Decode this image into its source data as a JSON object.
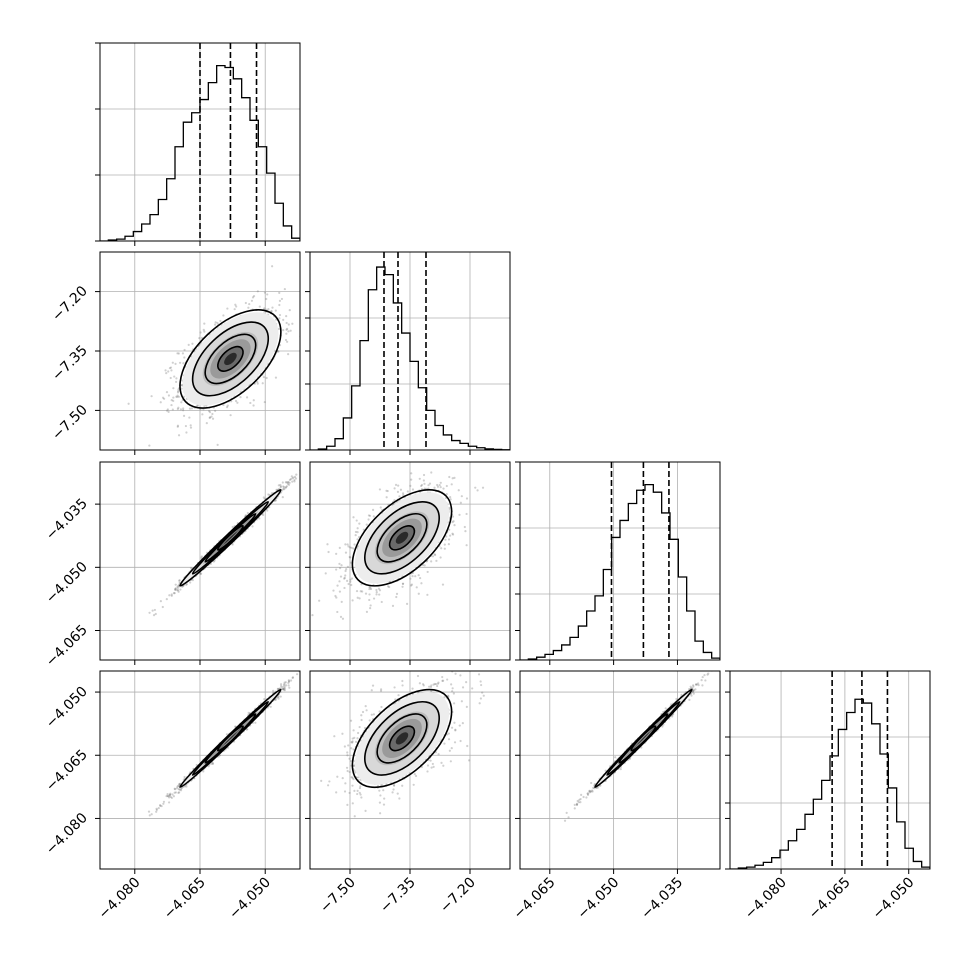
{
  "chart_data": {
    "type": "corner",
    "description_free": true,
    "parameters": [
      {
        "range": [
          -4.088,
          -4.042
        ],
        "ticks": [
          -4.08,
          -4.065,
          -4.05
        ],
        "tick_labels": [
          "−4.080",
          "−4.065",
          "−4.050"
        ]
      },
      {
        "range": [
          -7.6,
          -7.1
        ],
        "ticks": [
          -7.5,
          -7.35,
          -7.2
        ],
        "tick_labels": [
          "−7.50",
          "−7.35",
          "−7.20"
        ]
      },
      {
        "range": [
          -4.072,
          -4.025
        ],
        "ticks": [
          -4.065,
          -4.05,
          -4.035
        ],
        "tick_labels": [
          "−4.065",
          "−4.050",
          "−4.035"
        ]
      },
      {
        "range": [
          -4.092,
          -4.045
        ],
        "ticks": [
          -4.08,
          -4.065,
          -4.05
        ],
        "tick_labels": [
          "−4.080",
          "−4.065",
          "−4.050"
        ]
      }
    ],
    "histograms": [
      {
        "counts": [
          0,
          0.005,
          0.01,
          0.025,
          0.05,
          0.09,
          0.14,
          0.22,
          0.33,
          0.5,
          0.63,
          0.68,
          0.75,
          0.84,
          0.93,
          0.92,
          0.86,
          0.76,
          0.64,
          0.5,
          0.36,
          0.2,
          0.08,
          0.015
        ],
        "quantiles": [
          -4.065,
          -4.058,
          -4.052
        ]
      },
      {
        "counts": [
          0,
          0.005,
          0.02,
          0.06,
          0.17,
          0.34,
          0.58,
          0.85,
          0.97,
          0.93,
          0.78,
          0.62,
          0.47,
          0.33,
          0.21,
          0.13,
          0.08,
          0.05,
          0.035,
          0.02,
          0.012,
          0.006,
          0.003,
          0.001
        ],
        "quantiles": [
          -7.415,
          -7.38,
          -7.31
        ]
      },
      {
        "counts": [
          0,
          0.005,
          0.015,
          0.03,
          0.05,
          0.08,
          0.12,
          0.18,
          0.26,
          0.34,
          0.48,
          0.65,
          0.74,
          0.83,
          0.9,
          0.93,
          0.89,
          0.78,
          0.64,
          0.44,
          0.26,
          0.1,
          0.04,
          0.01
        ],
        "quantiles": [
          -4.0505,
          -4.043,
          -4.037
        ]
      },
      {
        "counts": [
          0,
          0.005,
          0.01,
          0.02,
          0.035,
          0.06,
          0.1,
          0.15,
          0.21,
          0.29,
          0.37,
          0.47,
          0.6,
          0.74,
          0.83,
          0.9,
          0.88,
          0.77,
          0.61,
          0.43,
          0.25,
          0.11,
          0.04,
          0.01
        ],
        "quantiles": [
          -4.068,
          -4.061,
          -4.055
        ]
      }
    ],
    "hist_ymax": 1.05,
    "hist_yticks": [
      0.35,
      0.7,
      1.05
    ],
    "pairs": [
      {
        "row": 1,
        "col": 0,
        "mean": [
          -4.058,
          -7.37
        ],
        "sd": [
          0.0058,
          0.062
        ],
        "rho": 0.55
      },
      {
        "row": 2,
        "col": 0,
        "mean": [
          -4.058,
          -4.043
        ],
        "sd": [
          0.0058,
          0.0057
        ],
        "rho": 0.992
      },
      {
        "row": 2,
        "col": 1,
        "mean": [
          -7.37,
          -4.043
        ],
        "sd": [
          0.062,
          0.0057
        ],
        "rho": 0.55
      },
      {
        "row": 3,
        "col": 0,
        "mean": [
          -4.058,
          -4.061
        ],
        "sd": [
          0.0058,
          0.0058
        ],
        "rho": 0.995
      },
      {
        "row": 3,
        "col": 1,
        "mean": [
          -7.37,
          -4.061
        ],
        "sd": [
          0.062,
          0.0058
        ],
        "rho": 0.55
      },
      {
        "row": 3,
        "col": 2,
        "mean": [
          -4.043,
          -4.061
        ],
        "sd": [
          0.0057,
          0.0058
        ],
        "rho": 0.995
      }
    ],
    "contour_levels_sigma": [
      0.5,
      1.0,
      1.5,
      2.0
    ],
    "grid": true,
    "title": "",
    "axis_labels": [
      "",
      "",
      "",
      ""
    ],
    "colors": {
      "line": "#000000",
      "grid": "#b0b0b0",
      "points": "#555555",
      "background": "#ffffff"
    }
  }
}
